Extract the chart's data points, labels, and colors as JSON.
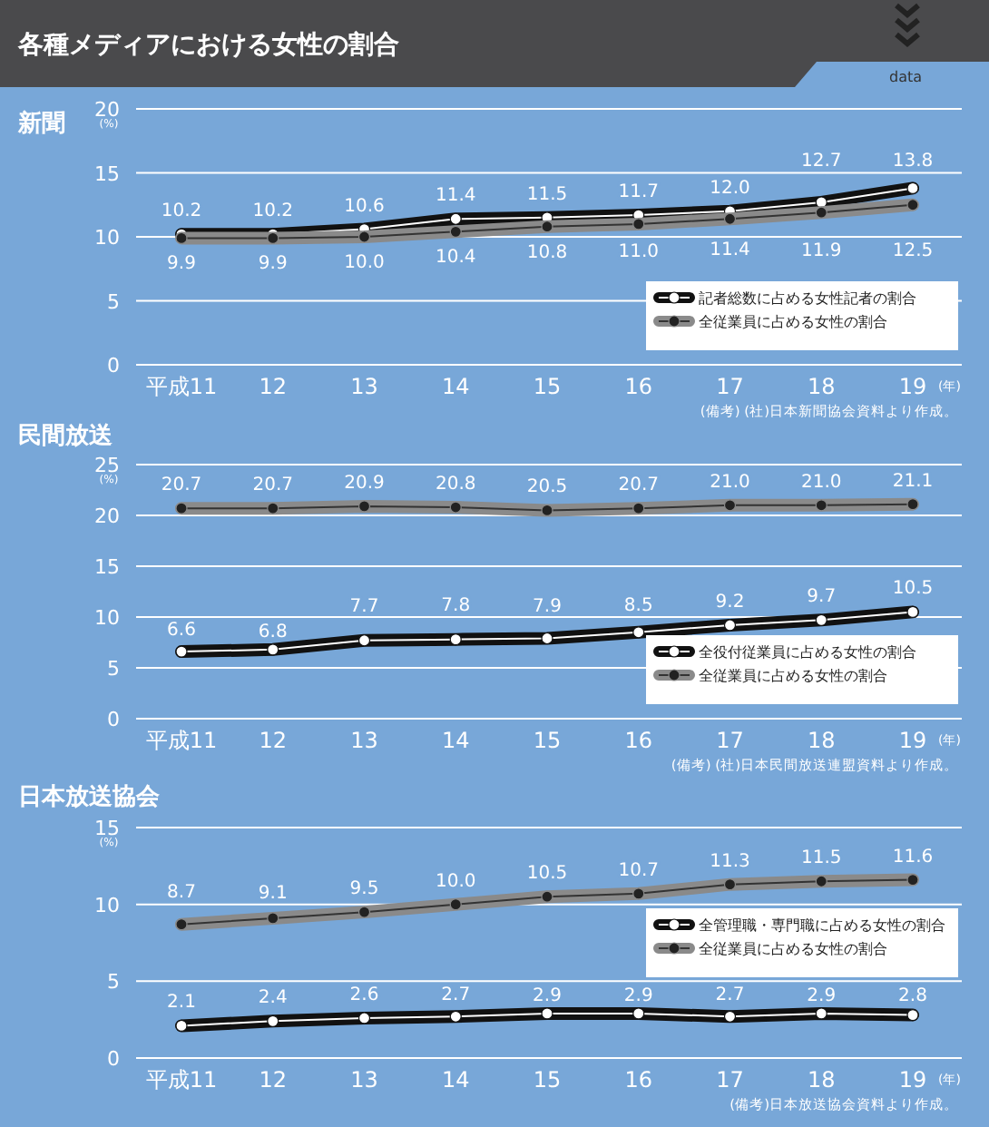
{
  "chart_data": [
    {
      "type": "line",
      "title": "各種メディアにおける女性の割合",
      "subtitle": "新聞",
      "ylabel": "(%)",
      "xlabel": "(年)",
      "annotations": [
        "data",
        "(備考) (社)日本新聞協会資料より作成。"
      ],
      "categories": [
        "平成11",
        "12",
        "13",
        "14",
        "15",
        "16",
        "17",
        "18",
        "19"
      ],
      "ylim": [
        0,
        20
      ],
      "yticks": [
        0,
        5,
        10,
        15,
        20
      ],
      "grid": "y",
      "legend": "bottom right",
      "marker": "circle",
      "series": [
        {
          "name": "記者総数に占める女性記者の割合",
          "color": "#111111",
          "values": [
            10.2,
            10.2,
            10.6,
            11.4,
            11.5,
            11.7,
            12.0,
            12.7,
            13.8
          ],
          "value_labels": [
            "10.2",
            "10.2",
            "10.6",
            "11.4",
            "11.5",
            "11.7",
            "12.0",
            "12.7",
            "13.8"
          ]
        },
        {
          "name": "全従業員に占める女性の割合",
          "color": "#8a8a8a",
          "values": [
            9.9,
            9.9,
            10.0,
            10.4,
            10.8,
            11.0,
            11.4,
            11.9,
            12.5
          ],
          "value_labels": [
            "9.9",
            "9.9",
            "10.0",
            "10.4",
            "10.8",
            "11.0",
            "11.4",
            "11.9",
            "12.5"
          ]
        }
      ]
    },
    {
      "type": "line",
      "title": "民間放送",
      "ylabel": "(%)",
      "xlabel": "(年)",
      "annotations": [
        "(備考) (社)日本民間放送連盟資料より作成。"
      ],
      "categories": [
        "平成11",
        "12",
        "13",
        "14",
        "15",
        "16",
        "17",
        "18",
        "19"
      ],
      "ylim": [
        0,
        25
      ],
      "yticks": [
        0,
        5,
        10,
        15,
        20,
        25
      ],
      "grid": "y",
      "legend": "bottom right",
      "marker": "circle",
      "series": [
        {
          "name": "全役付従業員に占める女性の割合",
          "color": "#111111",
          "values": [
            6.6,
            6.8,
            7.7,
            7.8,
            7.9,
            8.5,
            9.2,
            9.7,
            10.5
          ],
          "value_labels": [
            "6.6",
            "6.8",
            "7.7",
            "7.8",
            "7.9",
            "8.5",
            "9.2",
            "9.7",
            "10.5"
          ]
        },
        {
          "name": "全従業員に占める女性の割合",
          "color": "#8a8a8a",
          "values": [
            20.7,
            20.7,
            20.9,
            20.8,
            20.5,
            20.7,
            21.0,
            21.0,
            21.1
          ],
          "value_labels": [
            "20.7",
            "20.7",
            "20.9",
            "20.8",
            "20.5",
            "20.7",
            "21.0",
            "21.0",
            "21.1"
          ]
        }
      ]
    },
    {
      "type": "line",
      "title": "日本放送協会",
      "ylabel": "(%)",
      "xlabel": "(年)",
      "annotations": [
        "(備考)日本放送協会資料より作成。"
      ],
      "categories": [
        "平成11",
        "12",
        "13",
        "14",
        "15",
        "16",
        "17",
        "18",
        "19"
      ],
      "ylim": [
        0,
        15
      ],
      "yticks": [
        0,
        5,
        10,
        15
      ],
      "grid": "y",
      "legend": "right",
      "marker": "circle",
      "series": [
        {
          "name": "全管理職・専門職に占める女性の割合",
          "color": "#111111",
          "values": [
            2.1,
            2.4,
            2.6,
            2.7,
            2.9,
            2.9,
            2.7,
            2.9,
            2.8
          ],
          "value_labels": [
            "2.1",
            "2.4",
            "2.6",
            "2.7",
            "2.9",
            "2.9",
            "2.7",
            "2.9",
            "2.8"
          ]
        },
        {
          "name": "全従業員に占める女性の割合",
          "color": "#8a8a8a",
          "values": [
            8.7,
            9.1,
            9.5,
            10.0,
            10.5,
            10.7,
            11.3,
            11.5,
            11.6
          ],
          "value_labels": [
            "8.7",
            "9.1",
            "9.5",
            "10.0",
            "10.5",
            "10.7",
            "11.3",
            "11.5",
            "11.6"
          ]
        }
      ]
    }
  ]
}
